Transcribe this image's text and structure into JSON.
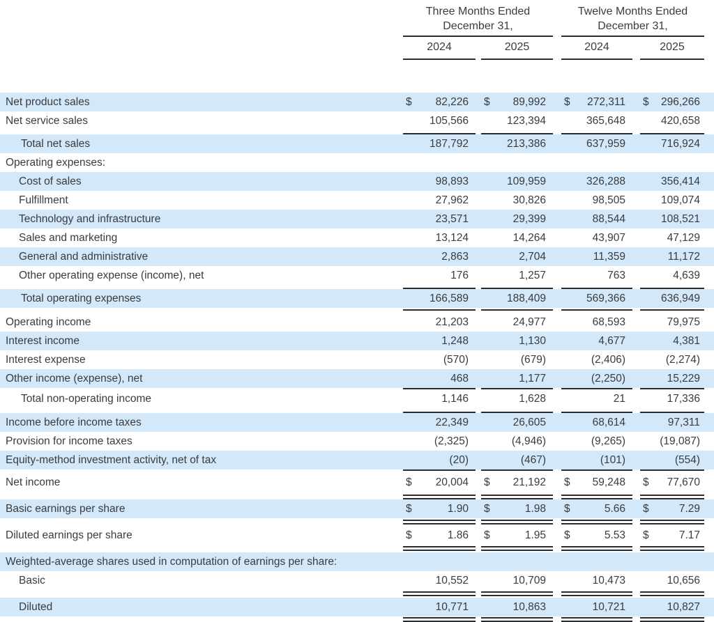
{
  "colors": {
    "row_highlight": "#d3e8f8",
    "rule": "#272c31",
    "text": "#383c40"
  },
  "table": {
    "currency": "$",
    "header": {
      "groups": [
        {
          "title_line1": "Three Months Ended",
          "title_line2": "December 31,",
          "years": [
            "2024",
            "2025"
          ]
        },
        {
          "title_line1": "Twelve Months Ended",
          "title_line2": "December 31,",
          "years": [
            "2024",
            "2025"
          ]
        }
      ]
    },
    "rows": [
      {
        "label": "Net product sales",
        "values": [
          "82,226",
          "89,992",
          "272,311",
          "296,266"
        ]
      },
      {
        "label": "Net service sales",
        "values": [
          "105,566",
          "123,394",
          "365,648",
          "420,658"
        ]
      },
      {
        "label": "Total net sales",
        "values": [
          "187,792",
          "213,386",
          "637,959",
          "716,924"
        ]
      },
      {
        "label": "Operating expenses:"
      },
      {
        "label": "Cost of sales",
        "values": [
          "98,893",
          "109,959",
          "326,288",
          "356,414"
        ]
      },
      {
        "label": "Fulfillment",
        "values": [
          "27,962",
          "30,826",
          "98,505",
          "109,074"
        ]
      },
      {
        "label": "Technology and infrastructure",
        "values": [
          "23,571",
          "29,399",
          "88,544",
          "108,521"
        ]
      },
      {
        "label": "Sales and marketing",
        "values": [
          "13,124",
          "14,264",
          "43,907",
          "47,129"
        ]
      },
      {
        "label": "General and administrative",
        "values": [
          "2,863",
          "2,704",
          "11,359",
          "11,172"
        ]
      },
      {
        "label": "Other operating expense (income), net",
        "values": [
          "176",
          "1,257",
          "763",
          "4,639"
        ]
      },
      {
        "label": "Total operating expenses",
        "values": [
          "166,589",
          "188,409",
          "569,366",
          "636,949"
        ]
      },
      {
        "label": "Operating income",
        "values": [
          "21,203",
          "24,977",
          "68,593",
          "79,975"
        ]
      },
      {
        "label": "Interest income",
        "values": [
          "1,248",
          "1,130",
          "4,677",
          "4,381"
        ]
      },
      {
        "label": "Interest expense",
        "values": [
          "(570)",
          "(679)",
          "(2,406)",
          "(2,274)"
        ]
      },
      {
        "label": "Other income (expense), net",
        "values": [
          "468",
          "1,177",
          "(2,250)",
          "15,229"
        ]
      },
      {
        "label": "Total non-operating income",
        "values": [
          "1,146",
          "1,628",
          "21",
          "17,336"
        ]
      },
      {
        "label": "Income before income taxes",
        "values": [
          "22,349",
          "26,605",
          "68,614",
          "97,311"
        ]
      },
      {
        "label": "Provision for income taxes",
        "values": [
          "(2,325)",
          "(4,946)",
          "(9,265)",
          "(19,087)"
        ]
      },
      {
        "label": "Equity-method investment activity, net of tax",
        "values": [
          "(20)",
          "(467)",
          "(101)",
          "(554)"
        ]
      },
      {
        "label": "Net income",
        "values": [
          "20,004",
          "21,192",
          "59,248",
          "77,670"
        ]
      },
      {
        "label": "Basic earnings per share",
        "values": [
          "1.90",
          "1.98",
          "5.66",
          "7.29"
        ]
      },
      {
        "label": "Diluted earnings per share",
        "values": [
          "1.86",
          "1.95",
          "5.53",
          "7.17"
        ]
      },
      {
        "label": "Weighted-average shares used in computation of earnings per share:"
      },
      {
        "label": "Basic",
        "values": [
          "10,552",
          "10,709",
          "10,473",
          "10,656"
        ]
      },
      {
        "label": "Diluted",
        "values": [
          "10,771",
          "10,863",
          "10,721",
          "10,827"
        ]
      }
    ]
  }
}
